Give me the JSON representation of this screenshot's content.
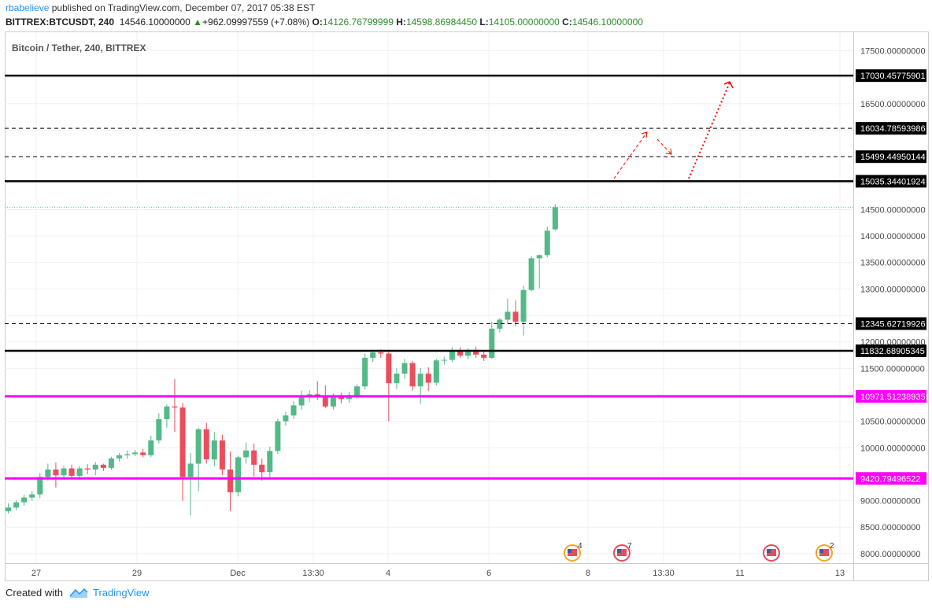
{
  "header": {
    "username": "rbabelieve",
    "published_text": "published on TradingView.com, December 07, 2017 05:38 EST",
    "symbol": "BITTREX:BTCUSDT, 240",
    "last": "14546.10000000",
    "change_arrow": "▲",
    "change": "+962.09997559 (+7.08%)",
    "open_label": "O:",
    "open": "14126.76799999",
    "high_label": "H:",
    "high": "14598.86984450",
    "low_label": "L:",
    "low": "14105.00000000",
    "close_label": "C:",
    "close": "14546.10000000"
  },
  "footer": {
    "created_with": "Created with",
    "brand": "TradingView"
  },
  "chart_data": {
    "type": "candlestick",
    "title": "Bitcoin / Tether, 240, BITTREX",
    "ylim": [
      7820,
      17850
    ],
    "y_ticks": [
      "17500.00000000",
      "16500.00000000",
      "14500.00000000",
      "14000.00000000",
      "13500.00000000",
      "13000.00000000",
      "12000.00000000",
      "11500.00000000",
      "10500.00000000",
      "10000.00000000",
      "9000.00000000",
      "8500.00000000",
      "8000.00000000"
    ],
    "x_ticks": [
      "27",
      "29",
      "Dec",
      "13:30",
      "4",
      "6",
      "8",
      "13:30",
      "11",
      "13"
    ],
    "colors": {
      "up": "#53b987",
      "down": "#eb4d5c",
      "black_line": "#000000",
      "magenta_line": "#ff00ff",
      "price_line": "#53b987",
      "arrow": "#ff0000"
    },
    "candles": [
      {
        "o": 8800,
        "h": 8950,
        "l": 8760,
        "c": 8870
      },
      {
        "o": 8870,
        "h": 9010,
        "l": 8820,
        "c": 8970
      },
      {
        "o": 8970,
        "h": 9110,
        "l": 8900,
        "c": 9060
      },
      {
        "o": 9060,
        "h": 9180,
        "l": 9000,
        "c": 9120
      },
      {
        "o": 9120,
        "h": 9520,
        "l": 9050,
        "c": 9450
      },
      {
        "o": 9450,
        "h": 9700,
        "l": 9380,
        "c": 9590
      },
      {
        "o": 9590,
        "h": 9720,
        "l": 9250,
        "c": 9480
      },
      {
        "o": 9480,
        "h": 9660,
        "l": 9400,
        "c": 9610
      },
      {
        "o": 9610,
        "h": 9680,
        "l": 9430,
        "c": 9470
      },
      {
        "o": 9470,
        "h": 9660,
        "l": 9410,
        "c": 9610
      },
      {
        "o": 9610,
        "h": 9690,
        "l": 9500,
        "c": 9590
      },
      {
        "o": 9590,
        "h": 9730,
        "l": 9480,
        "c": 9680
      },
      {
        "o": 9680,
        "h": 9700,
        "l": 9560,
        "c": 9620
      },
      {
        "o": 9620,
        "h": 9830,
        "l": 9580,
        "c": 9800
      },
      {
        "o": 9800,
        "h": 9900,
        "l": 9740,
        "c": 9860
      },
      {
        "o": 9860,
        "h": 9950,
        "l": 9790,
        "c": 9880
      },
      {
        "o": 9880,
        "h": 9960,
        "l": 9840,
        "c": 9910
      },
      {
        "o": 9910,
        "h": 9980,
        "l": 9820,
        "c": 9860
      },
      {
        "o": 9860,
        "h": 10230,
        "l": 9820,
        "c": 10140
      },
      {
        "o": 10140,
        "h": 10650,
        "l": 10080,
        "c": 10540
      },
      {
        "o": 10540,
        "h": 10820,
        "l": 10380,
        "c": 10780
      },
      {
        "o": 10780,
        "h": 11300,
        "l": 10300,
        "c": 10760
      },
      {
        "o": 10760,
        "h": 10850,
        "l": 9000,
        "c": 9450
      },
      {
        "o": 9450,
        "h": 9900,
        "l": 8720,
        "c": 9700
      },
      {
        "o": 9700,
        "h": 10380,
        "l": 9180,
        "c": 10350
      },
      {
        "o": 10350,
        "h": 10470,
        "l": 9700,
        "c": 9780
      },
      {
        "o": 9780,
        "h": 10300,
        "l": 9650,
        "c": 10140
      },
      {
        "o": 10140,
        "h": 10250,
        "l": 9480,
        "c": 9590
      },
      {
        "o": 9590,
        "h": 9930,
        "l": 8800,
        "c": 9160
      },
      {
        "o": 9160,
        "h": 9850,
        "l": 9080,
        "c": 9820
      },
      {
        "o": 9820,
        "h": 10100,
        "l": 9700,
        "c": 9950
      },
      {
        "o": 9950,
        "h": 10080,
        "l": 9460,
        "c": 9680
      },
      {
        "o": 9680,
        "h": 9800,
        "l": 9380,
        "c": 9540
      },
      {
        "o": 9540,
        "h": 10020,
        "l": 9450,
        "c": 9940
      },
      {
        "o": 9940,
        "h": 10550,
        "l": 9880,
        "c": 10500
      },
      {
        "o": 10500,
        "h": 10680,
        "l": 10420,
        "c": 10610
      },
      {
        "o": 10610,
        "h": 10880,
        "l": 10540,
        "c": 10800
      },
      {
        "o": 10800,
        "h": 11080,
        "l": 10720,
        "c": 10980
      },
      {
        "o": 10980,
        "h": 11090,
        "l": 10860,
        "c": 11010
      },
      {
        "o": 11010,
        "h": 11260,
        "l": 10900,
        "c": 10960
      },
      {
        "o": 10960,
        "h": 11180,
        "l": 10750,
        "c": 10780
      },
      {
        "o": 10780,
        "h": 11030,
        "l": 10720,
        "c": 10960
      },
      {
        "o": 10960,
        "h": 11040,
        "l": 10840,
        "c": 10920
      },
      {
        "o": 10920,
        "h": 11060,
        "l": 10850,
        "c": 10970
      },
      {
        "o": 10970,
        "h": 11200,
        "l": 10920,
        "c": 11160
      },
      {
        "o": 11160,
        "h": 11780,
        "l": 11100,
        "c": 11700
      },
      {
        "o": 11700,
        "h": 11840,
        "l": 11620,
        "c": 11800
      },
      {
        "o": 11800,
        "h": 11860,
        "l": 11700,
        "c": 11780
      },
      {
        "o": 11780,
        "h": 11850,
        "l": 10500,
        "c": 11220
      },
      {
        "o": 11220,
        "h": 11500,
        "l": 11110,
        "c": 11400
      },
      {
        "o": 11400,
        "h": 11680,
        "l": 11300,
        "c": 11600
      },
      {
        "o": 11600,
        "h": 11640,
        "l": 11080,
        "c": 11160
      },
      {
        "o": 11160,
        "h": 11510,
        "l": 10830,
        "c": 11400
      },
      {
        "o": 11400,
        "h": 11520,
        "l": 11070,
        "c": 11230
      },
      {
        "o": 11230,
        "h": 11680,
        "l": 11180,
        "c": 11650
      },
      {
        "o": 11650,
        "h": 11720,
        "l": 11570,
        "c": 11660
      },
      {
        "o": 11660,
        "h": 11900,
        "l": 11620,
        "c": 11840
      },
      {
        "o": 11840,
        "h": 11900,
        "l": 11700,
        "c": 11740
      },
      {
        "o": 11740,
        "h": 11880,
        "l": 11670,
        "c": 11850
      },
      {
        "o": 11850,
        "h": 11910,
        "l": 11700,
        "c": 11760
      },
      {
        "o": 11760,
        "h": 11830,
        "l": 11640,
        "c": 11700
      },
      {
        "o": 11700,
        "h": 12380,
        "l": 11680,
        "c": 12250
      },
      {
        "o": 12250,
        "h": 12450,
        "l": 12180,
        "c": 12420
      },
      {
        "o": 12420,
        "h": 12820,
        "l": 12340,
        "c": 12570
      },
      {
        "o": 12570,
        "h": 12780,
        "l": 12300,
        "c": 12380
      },
      {
        "o": 12380,
        "h": 13060,
        "l": 12120,
        "c": 12980
      },
      {
        "o": 12980,
        "h": 13620,
        "l": 12960,
        "c": 13580
      },
      {
        "o": 13580,
        "h": 13650,
        "l": 13010,
        "c": 13640
      },
      {
        "o": 13640,
        "h": 14180,
        "l": 13600,
        "c": 14100
      },
      {
        "o": 14126.77,
        "h": 14598.87,
        "l": 14105,
        "c": 14546.1
      }
    ],
    "hlines": [
      {
        "label": "17030.45775901",
        "value": 17030.45775901,
        "style": "thick-black"
      },
      {
        "label": "16034.78593986",
        "value": 16034.78593986,
        "style": "dashed-black"
      },
      {
        "label": "15499.44950144",
        "value": 15499.44950144,
        "style": "dashed-black"
      },
      {
        "label": "15035.34401924",
        "value": 15035.34401924,
        "style": "thick-black"
      },
      {
        "label": "12345.62719926",
        "value": 12345.62719926,
        "style": "dashed-black"
      },
      {
        "label": "11832.68905345",
        "value": 11832.68905345,
        "style": "thick-black"
      },
      {
        "label": "10971.51238935",
        "value": 10971.51238935,
        "style": "thick-magenta"
      },
      {
        "label": "9420.79496522",
        "value": 9420.79496522,
        "style": "thick-magenta"
      }
    ],
    "last_price": 14546.1,
    "events": [
      {
        "count": "4"
      },
      {
        "count": "7"
      },
      {
        "count": ""
      },
      {
        "count": "2"
      }
    ]
  }
}
